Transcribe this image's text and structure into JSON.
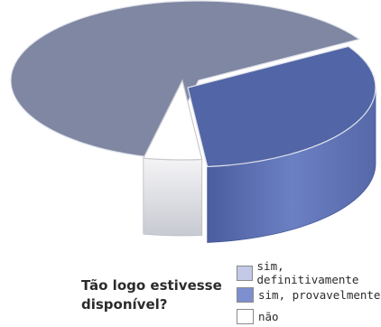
{
  "chart_data": {
    "type": "pie",
    "title": "Tão logo estivesse disponível?",
    "categories": [
      "sim, definitivamente",
      "sim, provavelmente",
      "não"
    ],
    "values": [
      63,
      32,
      5
    ],
    "unit": "%",
    "colors": {
      "sim, definitivamente": "#7f87a2",
      "sim, provavelmente": "#5265a6",
      "não": "#ffffff"
    },
    "legend_position": "bottom-right",
    "style": "3d-exploded"
  }
}
